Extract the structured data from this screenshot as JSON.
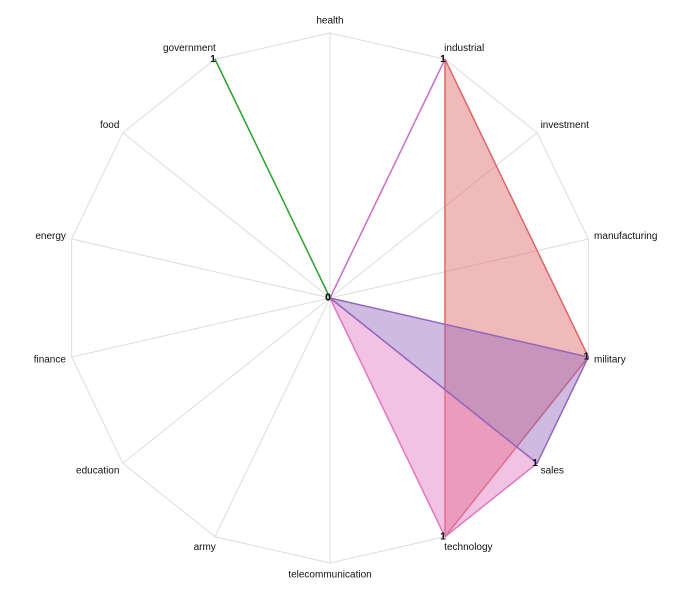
{
  "chart_data": {
    "type": "radar",
    "categories": [
      "health",
      "industrial",
      "investment",
      "manufacturing",
      "military",
      "sales",
      "technology",
      "telecommunication",
      "army",
      "education",
      "finance",
      "energy",
      "food",
      "government"
    ],
    "rlim": [
      0,
      1
    ],
    "series": [
      {
        "color": "#e06666",
        "values": [
          null,
          1,
          null,
          null,
          1,
          null,
          1,
          null,
          null,
          null,
          null,
          null,
          null,
          null
        ]
      },
      {
        "color": "#e377c2",
        "values": [
          null,
          null,
          null,
          null,
          null,
          1,
          1,
          0,
          null,
          null,
          null,
          null,
          null,
          null
        ]
      },
      {
        "color": "#9467bd",
        "values": [
          null,
          null,
          null,
          null,
          1,
          1,
          null,
          0,
          null,
          null,
          null,
          null,
          null,
          null
        ]
      },
      {
        "color": "#c96fc9",
        "values": [
          0,
          1,
          null,
          null,
          null,
          null,
          null,
          null,
          null,
          null,
          null,
          null,
          null,
          null
        ]
      },
      {
        "color": "#2ca02c",
        "values": [
          0,
          null,
          null,
          null,
          null,
          null,
          null,
          null,
          null,
          null,
          null,
          null,
          null,
          1
        ]
      }
    ]
  }
}
